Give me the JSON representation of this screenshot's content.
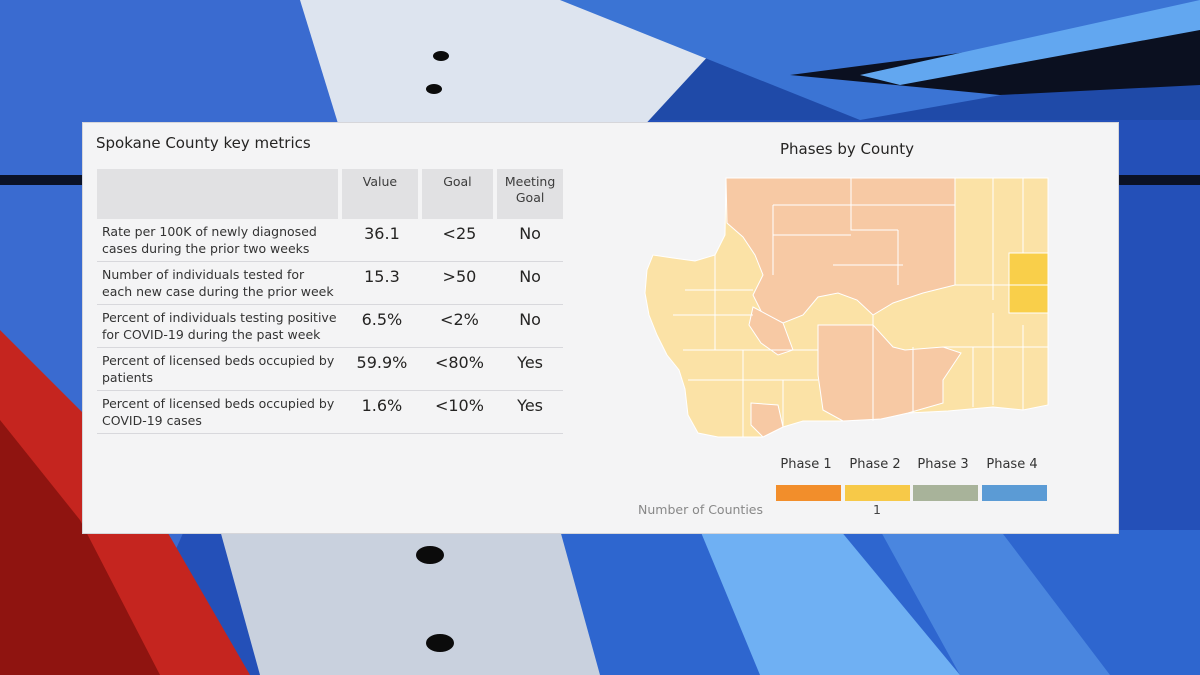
{
  "metrics": {
    "title": "Spokane County key metrics",
    "headers": {
      "label": "",
      "value": "Value",
      "goal": "Goal",
      "meeting_goal": "Meeting Goal"
    },
    "rows": [
      {
        "label": "Rate per 100K of newly diagnosed cases during the prior two weeks",
        "value": "36.1",
        "goal": "<25",
        "meeting": "No"
      },
      {
        "label": "Number of individuals tested for each new case during the prior week",
        "value": "15.3",
        "goal": ">50",
        "meeting": "No"
      },
      {
        "label": "Percent of individuals testing positive for COVID-19 during the past week",
        "value": "6.5%",
        "goal": "<2%",
        "meeting": "No"
      },
      {
        "label": "Percent of licensed beds occupied by patients",
        "value": "59.9%",
        "goal": "<80%",
        "meeting": "Yes"
      },
      {
        "label": "Percent of licensed beds occupied by COVID-19 cases",
        "value": "1.6%",
        "goal": "<10%",
        "meeting": "Yes"
      }
    ]
  },
  "map": {
    "title": "Phases by County",
    "legend": [
      {
        "label": "Phase 1",
        "color": "#f28e2b"
      },
      {
        "label": "Phase 2",
        "color": "#f7c948"
      },
      {
        "label": "Phase 3",
        "color": "#a8b39a"
      },
      {
        "label": "Phase 4",
        "color": "#5b9bd5"
      }
    ],
    "counties_label": "Number of Counties",
    "counties_value": "1",
    "region_colors": {
      "modified": "#f7c9a4",
      "phase2_light": "#fbe2a6",
      "phase2": "#f9cf4a"
    }
  },
  "colors": {
    "no": "#e66c37",
    "yes": "#2f8fe0"
  }
}
